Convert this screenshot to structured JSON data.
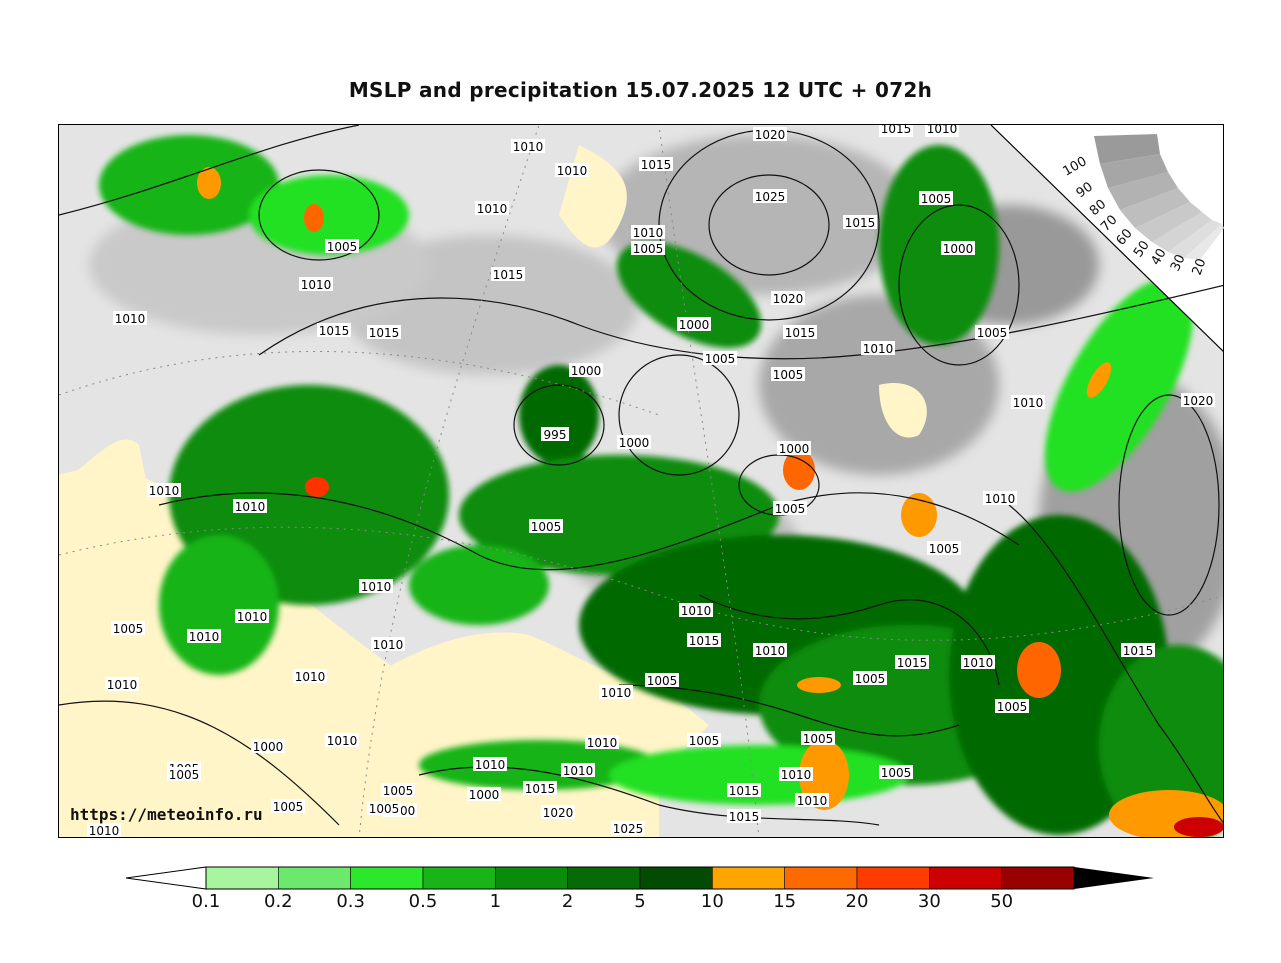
{
  "title": "MSLP and precipitation 15.07.2025 12 UTC + 072h",
  "watermark": "https://meteoinfo.ru",
  "colors": {
    "land": "#fff5c8",
    "ocean_light": "#e6e6e6",
    "ocean_mid": "#bdbdbd",
    "ocean_dark": "#8f8f8f",
    "precip": [
      "#a8f5a0",
      "#6ce86c",
      "#22e022",
      "#18b418",
      "#0a8c0a",
      "#066a06",
      "#034e03",
      "#ff9900",
      "#ff6600",
      "#ff3300",
      "#cc0000",
      "#990000",
      "#000000"
    ]
  },
  "colorbar": {
    "ticks": [
      "0.1",
      "0.2",
      "0.3",
      "0.5",
      "1",
      "2",
      "5",
      "10",
      "15",
      "20",
      "30",
      "50"
    ],
    "colors": [
      "#a8f5a0",
      "#6ce86c",
      "#2be82b",
      "#18b418",
      "#0a8c0a",
      "#066a06",
      "#034a03",
      "#ffa500",
      "#ff6a00",
      "#ff3c00",
      "#cc0000",
      "#990000"
    ]
  },
  "humidity_scale": {
    "labels": [
      "100",
      "90",
      "80",
      "70",
      "60",
      "50",
      "40",
      "30",
      "20"
    ]
  },
  "isobar_labels": [
    {
      "text": "1010",
      "id": "l1"
    },
    {
      "text": "1010",
      "id": "l2"
    },
    {
      "text": "1015",
      "id": "l3"
    },
    {
      "text": "1020",
      "id": "l4"
    },
    {
      "text": "1015",
      "id": "l5"
    },
    {
      "text": "1010",
      "id": "l6"
    },
    {
      "text": "1010",
      "id": "l7"
    },
    {
      "text": "1005",
      "id": "l8"
    },
    {
      "text": "1025",
      "id": "l9"
    },
    {
      "text": "1015",
      "id": "l10"
    },
    {
      "text": "1005",
      "id": "l11"
    },
    {
      "text": "1000",
      "id": "l12"
    },
    {
      "text": "1010",
      "id": "l13"
    },
    {
      "text": "1005",
      "id": "l14"
    },
    {
      "text": "1010",
      "id": "l15"
    },
    {
      "text": "1015",
      "id": "l16"
    },
    {
      "text": "1020",
      "id": "l17"
    },
    {
      "text": "1010",
      "id": "l18"
    },
    {
      "text": "1015",
      "id": "l19"
    },
    {
      "text": "1015",
      "id": "l20"
    },
    {
      "text": "1000",
      "id": "l21"
    },
    {
      "text": "1005",
      "id": "l22"
    },
    {
      "text": "1015",
      "id": "l23"
    },
    {
      "text": "1010",
      "id": "l24"
    },
    {
      "text": "1005",
      "id": "l25"
    },
    {
      "text": "1005",
      "id": "l26"
    },
    {
      "text": "1000",
      "id": "l27"
    },
    {
      "text": "995",
      "id": "l28"
    },
    {
      "text": "1000",
      "id": "l29"
    },
    {
      "text": "1010",
      "id": "l30"
    },
    {
      "text": "1020",
      "id": "l31"
    },
    {
      "text": "1010",
      "id": "l32"
    },
    {
      "text": "1010",
      "id": "l33"
    },
    {
      "text": "1000",
      "id": "l34"
    },
    {
      "text": "1005",
      "id": "l35"
    },
    {
      "text": "1010",
      "id": "l36"
    },
    {
      "text": "1005",
      "id": "l37"
    },
    {
      "text": "1005",
      "id": "l38"
    },
    {
      "text": "1010",
      "id": "l39"
    },
    {
      "text": "1010",
      "id": "l40"
    },
    {
      "text": "1010",
      "id": "l41"
    },
    {
      "text": "1010",
      "id": "l42"
    },
    {
      "text": "1010",
      "id": "l43"
    },
    {
      "text": "1010",
      "id": "l44"
    },
    {
      "text": "1010",
      "id": "l45"
    },
    {
      "text": "1015",
      "id": "l46"
    },
    {
      "text": "1010",
      "id": "l47"
    },
    {
      "text": "1010",
      "id": "l48"
    },
    {
      "text": "1005",
      "id": "l49"
    },
    {
      "text": "1005",
      "id": "l50"
    },
    {
      "text": "1015",
      "id": "l51"
    },
    {
      "text": "1010",
      "id": "l52"
    },
    {
      "text": "1015",
      "id": "l53"
    },
    {
      "text": "1005",
      "id": "l54"
    },
    {
      "text": "1005",
      "id": "l55"
    },
    {
      "text": "1005",
      "id": "l56"
    },
    {
      "text": "1010",
      "id": "l57"
    },
    {
      "text": "1000",
      "id": "l58"
    },
    {
      "text": "1010",
      "id": "l59"
    },
    {
      "text": "1005",
      "id": "l60"
    },
    {
      "text": "1005",
      "id": "l61"
    },
    {
      "text": "1010",
      "id": "l62"
    },
    {
      "text": "1005",
      "id": "l63"
    },
    {
      "text": "1000",
      "id": "l64"
    },
    {
      "text": "1005",
      "id": "l65"
    },
    {
      "text": "1010",
      "id": "l66"
    },
    {
      "text": "1010",
      "id": "l67"
    },
    {
      "text": "1000",
      "id": "l68"
    },
    {
      "text": "1015",
      "id": "l69"
    },
    {
      "text": "1020",
      "id": "l70"
    },
    {
      "text": "1025",
      "id": "l71"
    },
    {
      "text": "1015",
      "id": "l72"
    },
    {
      "text": "1015",
      "id": "l73"
    },
    {
      "text": "1005",
      "id": "l74"
    },
    {
      "text": "1010",
      "id": "l75"
    },
    {
      "text": "1010",
      "id": "l76"
    },
    {
      "text": "1005",
      "id": "l77"
    },
    {
      "text": "1005",
      "id": "l78"
    }
  ]
}
